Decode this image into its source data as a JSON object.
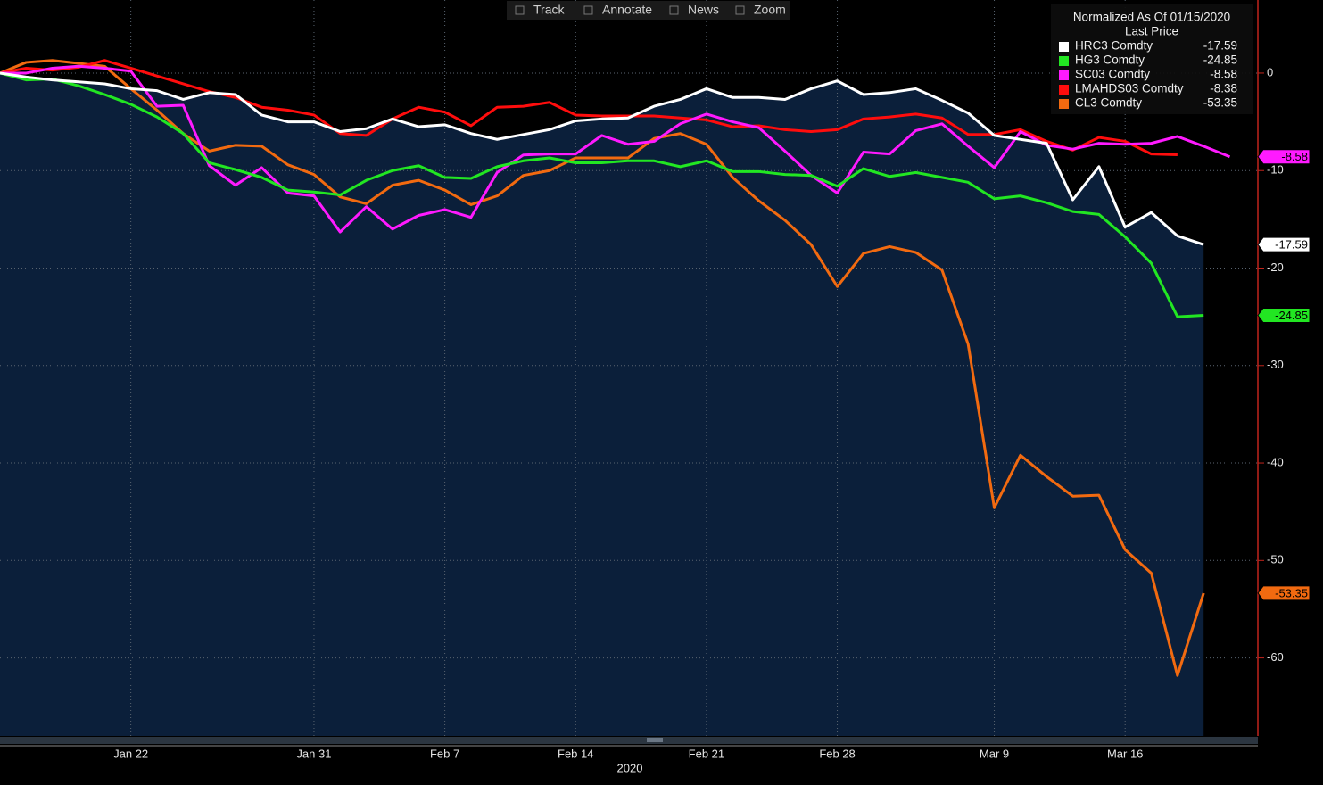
{
  "toolbar": [
    "Track",
    "Annotate",
    "News",
    "Zoom"
  ],
  "chart_data": {
    "type": "line",
    "legend_title": "Normalized As Of 01/15/2020",
    "legend_subtitle": "Last Price",
    "x_label": "2020",
    "categories": [
      null,
      null,
      null,
      null,
      null,
      "Jan 22",
      null,
      null,
      null,
      null,
      null,
      null,
      "Jan 31",
      null,
      null,
      null,
      null,
      "Feb 7",
      null,
      null,
      null,
      null,
      "Feb 14",
      null,
      null,
      null,
      null,
      "Feb 21",
      null,
      null,
      null,
      null,
      "Feb 28",
      null,
      null,
      null,
      null,
      null,
      "Mar 9",
      null,
      null,
      null,
      null,
      "Mar 16",
      null,
      null,
      null,
      null
    ],
    "ylim": [
      -68,
      7.5
    ],
    "yticks": [
      0,
      -10,
      -20,
      -30,
      -40,
      -50,
      -60
    ],
    "grid": true,
    "area_under": 0,
    "series": [
      {
        "name": "HRC3 Comdty",
        "color": "#ffffff",
        "values": [
          0,
          -0.4,
          -0.7,
          -0.9,
          -1.1,
          -1.6,
          -1.8,
          -2.7,
          -2.0,
          -2.2,
          -4.3,
          -5.0,
          -5.0,
          -6.0,
          -5.7,
          -4.7,
          -5.5,
          -5.3,
          -6.2,
          -6.8,
          -6.3,
          -5.8,
          -4.9,
          -4.7,
          -4.6,
          -3.4,
          -2.7,
          -1.6,
          -2.5,
          -2.5,
          -2.7,
          -1.6,
          -0.8,
          -2.2,
          -2.0,
          -1.6,
          -2.8,
          -4.1,
          -6.4,
          -6.8,
          -7.2,
          -13.0,
          -9.6,
          -15.8,
          -14.3,
          -16.7,
          -17.59,
          null
        ]
      },
      {
        "name": "HG3 Comdty",
        "color": "#22e622",
        "values": [
          0,
          -0.7,
          -0.6,
          -1.3,
          -2.2,
          -3.2,
          -4.5,
          -6.2,
          -9.2,
          -9.9,
          -10.7,
          -12.0,
          -12.2,
          -12.5,
          -11.0,
          -10.0,
          -9.5,
          -10.7,
          -10.8,
          -9.6,
          -9.0,
          -8.7,
          -9.2,
          -9.2,
          -9.0,
          -9.0,
          -9.6,
          -9.0,
          -10.1,
          -10.1,
          -10.4,
          -10.5,
          -11.6,
          -9.8,
          -10.6,
          -10.2,
          -10.7,
          -11.2,
          -12.9,
          -12.6,
          -13.3,
          -14.2,
          -14.5,
          -16.8,
          -19.5,
          -25.0,
          -24.85,
          null
        ]
      },
      {
        "name": "SC03 Comdty",
        "color": "#ff1aff",
        "values": [
          0,
          0,
          0.5,
          0.7,
          0.5,
          0.2,
          -3.4,
          -3.3,
          -9.5,
          -11.5,
          -9.7,
          -12.3,
          -12.6,
          -16.3,
          -13.7,
          -16.0,
          -14.6,
          -14.0,
          -14.8,
          -10.2,
          -8.4,
          -8.3,
          -8.3,
          -6.4,
          -7.3,
          -7.0,
          -5.2,
          -4.2,
          -5.0,
          -5.6,
          -8.0,
          -10.5,
          -12.3,
          -8.1,
          -8.3,
          -5.9,
          -5.2,
          -7.5,
          -9.7,
          -6.0,
          -7.4,
          -7.8,
          -7.2,
          -7.3,
          -7.2,
          -6.5,
          -7.5,
          -8.58
        ]
      },
      {
        "name": "LMAHDS03 Comdty",
        "color": "#ff0d0d",
        "values": [
          0,
          0.5,
          0.3,
          0.6,
          1.3,
          0.5,
          -0.3,
          -1.1,
          -1.9,
          -2.5,
          -3.5,
          -3.8,
          -4.3,
          -6.2,
          -6.4,
          -4.7,
          -3.5,
          -4.0,
          -5.4,
          -3.5,
          -3.4,
          -3.0,
          -4.3,
          -4.4,
          -4.4,
          -4.4,
          -4.6,
          -4.8,
          -5.5,
          -5.4,
          -5.8,
          -6.0,
          -5.8,
          -4.7,
          -4.5,
          -4.2,
          -4.6,
          -6.3,
          -6.3,
          -5.8,
          -7.0,
          -7.9,
          -6.6,
          -7.0,
          -8.3,
          -8.38,
          null,
          null
        ]
      },
      {
        "name": "CL3 Comdty",
        "color": "#f26a10",
        "values": [
          0,
          1.1,
          1.3,
          1.0,
          0.7,
          -1.6,
          -3.8,
          -6.2,
          -8.0,
          -7.4,
          -7.5,
          -9.4,
          -10.4,
          -12.7,
          -13.4,
          -11.5,
          -11.0,
          -12.0,
          -13.5,
          -12.6,
          -10.5,
          -10.0,
          -8.7,
          -8.7,
          -8.7,
          -6.7,
          -6.2,
          -7.3,
          -10.7,
          -13.1,
          -15.1,
          -17.6,
          -21.9,
          -18.5,
          -17.8,
          -18.4,
          -20.2,
          -27.8,
          -44.6,
          -39.2,
          -41.4,
          -43.4,
          -43.3,
          -48.9,
          -51.3,
          -61.8,
          -53.35,
          null
        ]
      }
    ],
    "axis_tags": [
      2,
      0,
      1,
      4
    ]
  }
}
